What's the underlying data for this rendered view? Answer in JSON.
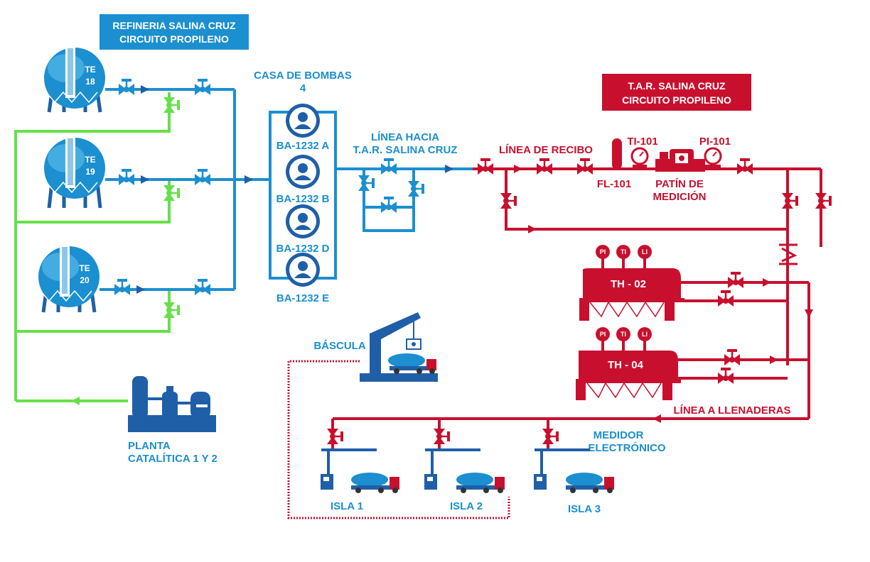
{
  "banners": {
    "refinery_line1": "REFINERIA SALINA CRUZ",
    "refinery_line2": "CIRCUITO PROPILENO",
    "tar_line1": "T.A.R. SALINA CRUZ",
    "tar_line2": "CIRCUITO PROPILENO"
  },
  "tanks": [
    {
      "label_top": "TE",
      "label_bottom": "18"
    },
    {
      "label_top": "TE",
      "label_bottom": "19"
    },
    {
      "label_top": "TE",
      "label_bottom": "20"
    }
  ],
  "pump_house": {
    "title_line1": "CASA DE BOMBAS",
    "title_line2": "4",
    "pumps": [
      "BA-1232 A",
      "BA-1232 B",
      "BA-1232 D",
      "BA-1232 E"
    ]
  },
  "line_to_tar": {
    "line1": "LÍNEA HACIA",
    "line2": "T.A.R. SALINA CRUZ"
  },
  "receiving": {
    "line_label": "LÍNEA DE RECIBO",
    "filter": "FL-101",
    "ti": "TI-101",
    "pi": "PI-101",
    "skid_line1": "PATÍN DE",
    "skid_line2": "MEDICIÓN"
  },
  "heaters": [
    {
      "label": "TH - 02",
      "instruments": [
        "PI",
        "TI",
        "LI"
      ]
    },
    {
      "label": "TH - 04",
      "instruments": [
        "PI",
        "TI",
        "LI"
      ]
    }
  ],
  "scale_label": "BÁSCULA",
  "filling_line_label": "LÍNEA A LLENADERAS",
  "meter_label_line1": "MEDIDOR",
  "meter_label_line2": "ELECTRÓNICO",
  "islands": [
    "ISLA  1",
    "ISLA  2",
    "ISLA  3"
  ],
  "plant": {
    "line1": "PLANTA",
    "line2": "CATALÍTICA 1 Y 2"
  },
  "colors": {
    "blue": "#1b8fd0",
    "dark_blue": "#1f5fa8",
    "red": "#c8102e",
    "green": "#66e04a"
  }
}
